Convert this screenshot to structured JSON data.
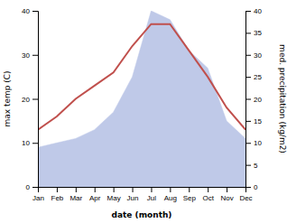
{
  "chart_data": {
    "type": "line",
    "xlabel": "date (month)",
    "ylabel": "max temp (C)",
    "y2label": "med. precipitation (kg/m2)",
    "categories": [
      "Jan",
      "Feb",
      "Mar",
      "Apr",
      "May",
      "Jun",
      "Jul",
      "Aug",
      "Sep",
      "Oct",
      "Nov",
      "Dec"
    ],
    "series": [
      {
        "type": "line",
        "color": "#c0504d",
        "values": [
          13,
          16,
          20,
          23,
          26,
          32,
          37,
          37,
          31,
          25,
          18,
          13
        ]
      },
      {
        "type": "area",
        "color": "#bfc9e8",
        "axis": "y2",
        "values": [
          9,
          10,
          11,
          13,
          17,
          25,
          40,
          38,
          31,
          27,
          15,
          11
        ]
      }
    ],
    "ylim": [
      0,
      40
    ],
    "yticks": [
      0,
      10,
      20,
      30,
      40
    ],
    "y2lim": [
      0,
      40
    ],
    "y2ticks": [
      0,
      5,
      10,
      15,
      20,
      25,
      30,
      35,
      40
    ],
    "grid": false
  }
}
